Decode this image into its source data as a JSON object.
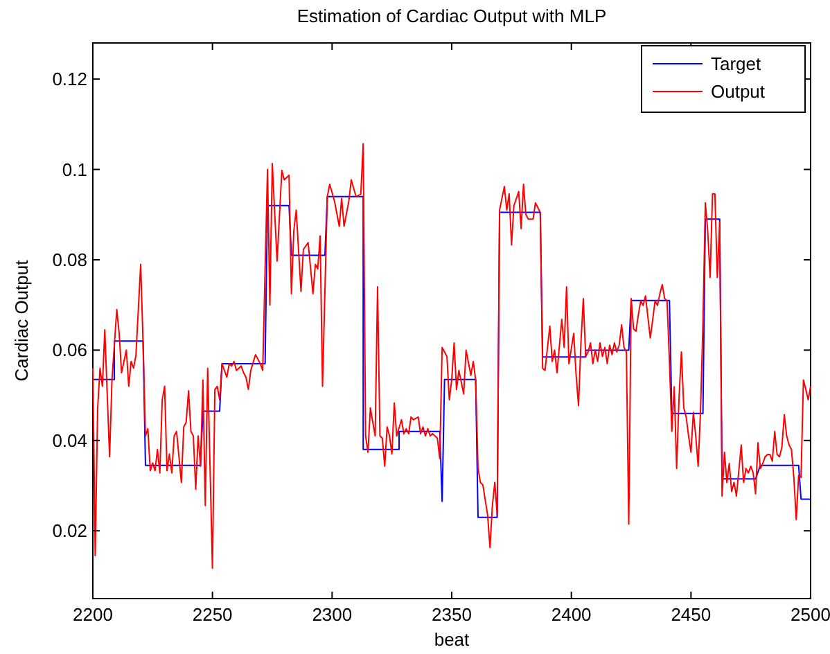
{
  "chart_data": {
    "type": "line",
    "title": "Estimation of Cardiac Output with MLP",
    "xlabel": "beat",
    "ylabel": "Cardiac Output",
    "xlim": [
      2200,
      2500
    ],
    "xticks": [
      2200,
      2250,
      2300,
      2350,
      2400,
      2450,
      2500
    ],
    "ylim": [
      0.005,
      0.128
    ],
    "yticks": [
      0.02,
      0.04,
      0.06,
      0.08,
      0.1,
      0.12
    ],
    "legend": "top right",
    "grid": false,
    "marker": "none",
    "line_style": "solid",
    "series": [
      {
        "name": "Target",
        "color": "#0000ff",
        "x": [
          2200,
          2209,
          2209,
          2221,
          2222,
          2245,
          2246,
          2253,
          2254,
          2272,
          2273,
          2282,
          2283,
          2297,
          2298,
          2313,
          2313,
          2328,
          2328,
          2345,
          2346,
          2347,
          2360,
          2361,
          2369,
          2370,
          2387,
          2388,
          2406,
          2406,
          2424,
          2425,
          2441,
          2442,
          2455,
          2456,
          2462,
          2463,
          2477,
          2479,
          2495,
          2496,
          2500
        ],
        "values": [
          0.0535,
          0.0535,
          0.062,
          0.062,
          0.0345,
          0.0345,
          0.0465,
          0.0465,
          0.057,
          0.057,
          0.092,
          0.092,
          0.081,
          0.081,
          0.094,
          0.094,
          0.038,
          0.038,
          0.042,
          0.042,
          0.0265,
          0.0535,
          0.0535,
          0.023,
          0.023,
          0.0905,
          0.0905,
          0.0585,
          0.0585,
          0.06,
          0.06,
          0.071,
          0.071,
          0.046,
          0.046,
          0.089,
          0.089,
          0.0315,
          0.0315,
          0.0345,
          0.0345,
          0.027,
          0.027
        ]
      },
      {
        "name": "Output",
        "color": "#ff0000",
        "x": [
          2200,
          2201,
          2202,
          2203,
          2204,
          2205,
          2207,
          2208,
          2210,
          2211,
          2212,
          2214,
          2215,
          2216,
          2217,
          2218,
          2220,
          2221,
          2222,
          2223,
          2224,
          2225,
          2226,
          2227,
          2228,
          2229,
          2230,
          2231,
          2232,
          2233,
          2234,
          2235,
          2237,
          2238,
          2239,
          2240,
          2241,
          2242,
          2243,
          2244,
          2245,
          2246,
          2247,
          2248,
          2250,
          2251,
          2252,
          2253,
          2254,
          2256,
          2257,
          2258,
          2259,
          2260,
          2262,
          2263,
          2264,
          2265,
          2266,
          2268,
          2270,
          2271,
          2273,
          2274,
          2275,
          2277,
          2279,
          2280,
          2282,
          2283,
          2284,
          2285,
          2287,
          2288,
          2290,
          2292,
          2293,
          2294,
          2295,
          2296,
          2298,
          2299,
          2301,
          2303,
          2304,
          2305,
          2307,
          2308,
          2310,
          2312,
          2313,
          2314,
          2315,
          2316,
          2318,
          2319,
          2320,
          2321,
          2322,
          2323,
          2324,
          2325,
          2326,
          2327,
          2329,
          2330,
          2331,
          2332,
          2333,
          2334,
          2336,
          2337,
          2338,
          2339,
          2340,
          2341,
          2342,
          2344,
          2345,
          2346,
          2348,
          2349,
          2350,
          2351,
          2352,
          2353,
          2355,
          2356,
          2358,
          2359,
          2360,
          2361,
          2362,
          2363,
          2365,
          2366,
          2367,
          2368,
          2369,
          2370,
          2372,
          2373,
          2374,
          2375,
          2376,
          2378,
          2379,
          2380,
          2381,
          2382,
          2384,
          2385,
          2387,
          2388,
          2389,
          2391,
          2392,
          2393,
          2394,
          2396,
          2397,
          2398,
          2399,
          2401,
          2402,
          2403,
          2404,
          2405,
          2406,
          2407,
          2408,
          2409,
          2410,
          2411,
          2412,
          2413,
          2414,
          2415,
          2416,
          2417,
          2418,
          2419,
          2420,
          2421,
          2422,
          2423,
          2424,
          2425,
          2426,
          2427,
          2428,
          2429,
          2430,
          2431,
          2432,
          2433,
          2434,
          2435,
          2436,
          2437,
          2438,
          2439,
          2440,
          2441,
          2442,
          2443,
          2444,
          2445,
          2446,
          2447,
          2448,
          2449,
          2450,
          2451,
          2452,
          2453,
          2454,
          2455,
          2456,
          2457,
          2458,
          2459,
          2460,
          2461,
          2462,
          2463,
          2464,
          2465,
          2466,
          2467,
          2468,
          2469,
          2470,
          2471,
          2472,
          2473,
          2474,
          2475,
          2476,
          2477,
          2478,
          2479,
          2480,
          2481,
          2482,
          2483,
          2484,
          2485,
          2486,
          2487,
          2488,
          2489,
          2490,
          2491,
          2492,
          2493,
          2494,
          2495,
          2496,
          2497,
          2498,
          2499,
          2500
        ],
        "values": [
          0.056,
          0.0145,
          0.047,
          0.056,
          0.052,
          0.0645,
          0.0364,
          0.0534,
          0.069,
          0.0637,
          0.055,
          0.06,
          0.052,
          0.0575,
          0.056,
          0.0588,
          0.079,
          0.0616,
          0.041,
          0.0426,
          0.0333,
          0.035,
          0.0333,
          0.038,
          0.0328,
          0.049,
          0.052,
          0.0333,
          0.037,
          0.0328,
          0.041,
          0.042,
          0.0307,
          0.043,
          0.044,
          0.051,
          0.042,
          0.041,
          0.0292,
          0.041,
          0.0343,
          0.0534,
          0.0256,
          0.056,
          0.0117,
          0.0513,
          0.052,
          0.049,
          0.057,
          0.054,
          0.057,
          0.0565,
          0.0575,
          0.0555,
          0.0565,
          0.055,
          0.054,
          0.0513,
          0.0555,
          0.059,
          0.057,
          0.0555,
          0.1,
          0.07,
          0.1013,
          0.0797,
          0.0998,
          0.0977,
          0.0987,
          0.0725,
          0.0864,
          0.091,
          0.073,
          0.0823,
          0.0838,
          0.0725,
          0.079,
          0.078,
          0.0853,
          0.052,
          0.094,
          0.0967,
          0.093,
          0.0874,
          0.0936,
          0.0874,
          0.093,
          0.0977,
          0.094,
          0.0945,
          0.1057,
          0.041,
          0.0374,
          0.0472,
          0.041,
          0.074,
          0.041,
          0.0405,
          0.0343,
          0.043,
          0.041,
          0.037,
          0.0483,
          0.041,
          0.0446,
          0.0415,
          0.0426,
          0.0415,
          0.0452,
          0.0446,
          0.0452,
          0.0415,
          0.043,
          0.041,
          0.0426,
          0.041,
          0.0415,
          0.0405,
          0.036,
          0.0606,
          0.0586,
          0.049,
          0.0534,
          0.0616,
          0.0513,
          0.0555,
          0.0503,
          0.06,
          0.0544,
          0.0575,
          0.0534,
          0.0338,
          0.0307,
          0.0302,
          0.0235,
          0.0163,
          0.0256,
          0.0307,
          0.0235,
          0.091,
          0.0962,
          0.091,
          0.0946,
          0.0833,
          0.092,
          0.0951,
          0.0869,
          0.0967,
          0.09,
          0.089,
          0.089,
          0.0926,
          0.0905,
          0.056,
          0.0555,
          0.0653,
          0.0575,
          0.06,
          0.055,
          0.0668,
          0.0606,
          0.074,
          0.057,
          0.0637,
          0.0544,
          0.0477,
          0.0616,
          0.0714,
          0.0586,
          0.0596,
          0.0616,
          0.057,
          0.06,
          0.0575,
          0.0616,
          0.0586,
          0.0606,
          0.057,
          0.0611,
          0.059,
          0.0616,
          0.0596,
          0.0611,
          0.0656,
          0.0606,
          0.0596,
          0.0215,
          0.0714,
          0.0647,
          0.0642,
          0.0678,
          0.0709,
          0.0699,
          0.072,
          0.0673,
          0.0627,
          0.0668,
          0.0709,
          0.0699,
          0.0725,
          0.0745,
          0.0714,
          0.0709,
          0.0575,
          0.042,
          0.0519,
          0.0338,
          0.0493,
          0.0596,
          0.0472,
          0.0452,
          0.041,
          0.0374,
          0.0462,
          0.041,
          0.0343,
          0.0467,
          0.0658,
          0.0926,
          0.0864,
          0.0761,
          0.0946,
          0.0946,
          0.0761,
          0.0884,
          0.0277,
          0.0374,
          0.0307,
          0.0349,
          0.0287,
          0.0307,
          0.0277,
          0.0333,
          0.039,
          0.0307,
          0.0338,
          0.0328,
          0.0343,
          0.0328,
          0.0282,
          0.0395,
          0.0338,
          0.0349,
          0.0364,
          0.0369,
          0.0369,
          0.0354,
          0.042,
          0.0369,
          0.0364,
          0.0385,
          0.0457,
          0.041,
          0.039,
          0.038,
          0.0318,
          0.0225,
          0.0323,
          0.0318,
          0.0534,
          0.0513,
          0.049,
          0.052
        ]
      }
    ]
  }
}
